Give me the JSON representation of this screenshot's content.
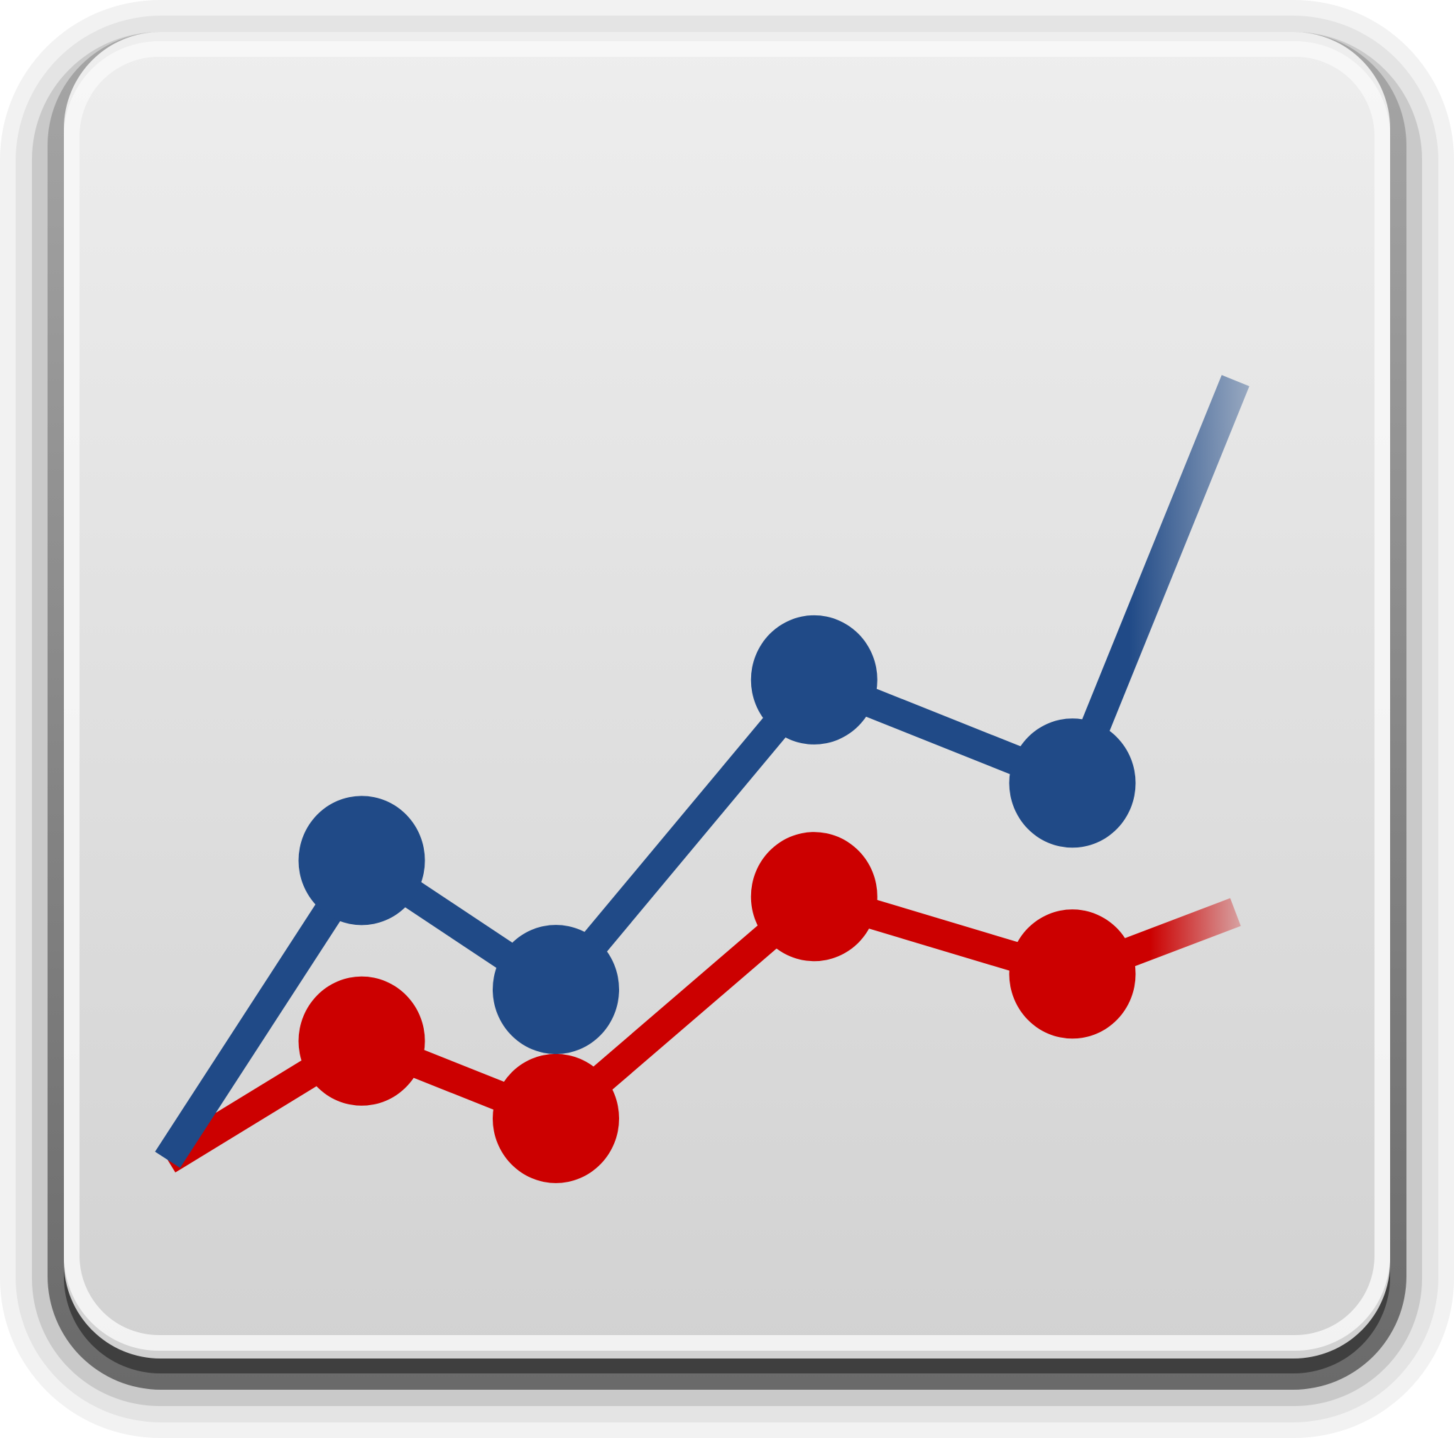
{
  "icon": {
    "name": "line-chart-icon",
    "frame_colors": {
      "halo": "#f2f2f2",
      "ring_light": "#e4e4e4",
      "ring_mid": "#c9c9c9",
      "bezel_top": "#a6a6a6",
      "bezel_bottom": "#6a6a6a",
      "shadow": "#3f3f3f",
      "face_top": "#eeeeee",
      "face_bottom": "#d2d2d2",
      "highlight": "#f8f8f8"
    },
    "series": [
      {
        "color": "#204a87",
        "values": [
          0,
          5.8,
          3.3,
          9.3,
          7.3
        ],
        "trailing_value": 15.1
      },
      {
        "color": "#cc0000",
        "values": [
          0,
          2.3,
          0.8,
          5.1,
          3.6
        ],
        "trailing_value": 4.8
      }
    ],
    "x": [
      0,
      1,
      2,
      3.33,
      4.66
    ],
    "trailing_x": 5.5,
    "marked_points": [
      1,
      2,
      3,
      4
    ]
  }
}
